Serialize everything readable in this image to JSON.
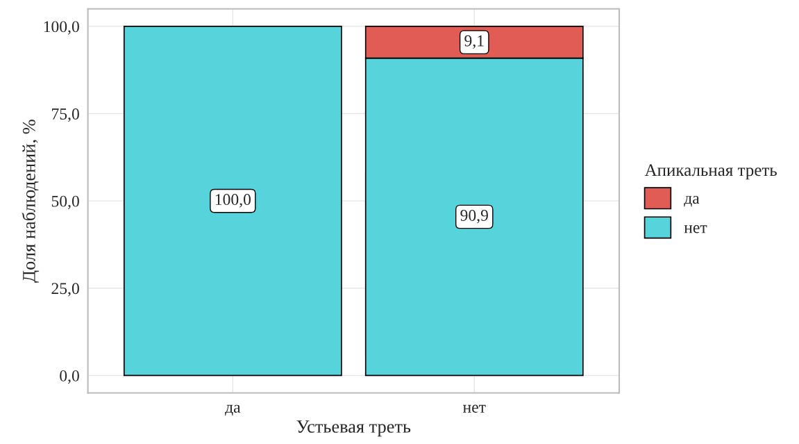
{
  "chart_data": {
    "type": "bar",
    "stacked": true,
    "xlabel": "Устьевая треть",
    "ylabel": "Доля наблюдений, %",
    "legend_title": "Апикальная треть",
    "legend": "right",
    "grid": true,
    "categories": [
      "да",
      "нет"
    ],
    "series": [
      {
        "name": "нет",
        "color": "#56d3db",
        "values": [
          100.0,
          90.9
        ],
        "value_labels": [
          "100,0",
          "90,9"
        ]
      },
      {
        "name": "да",
        "color": "#e05c55",
        "values": [
          null,
          9.1
        ],
        "value_labels": [
          null,
          "9,1"
        ]
      }
    ],
    "ylim": [
      -5,
      105
    ],
    "yticks": [
      {
        "value": 0,
        "label": "0,0"
      },
      {
        "value": 25,
        "label": "25,0"
      },
      {
        "value": 50,
        "label": "50,0"
      },
      {
        "value": 75,
        "label": "75,0"
      },
      {
        "value": 100,
        "label": "100,0"
      }
    ]
  }
}
